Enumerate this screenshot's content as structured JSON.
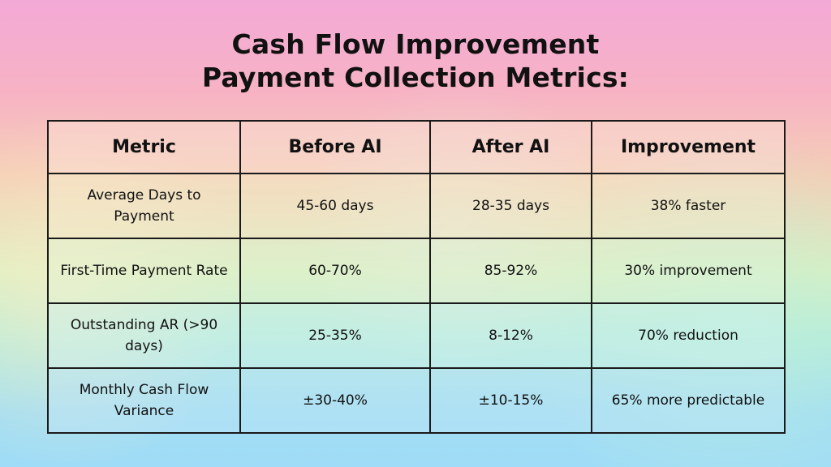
{
  "title": {
    "line1": "Cash Flow Improvement",
    "line2": "Payment Collection Metrics:"
  },
  "table": {
    "headers": [
      "Metric",
      "Before AI",
      "After AI",
      "Improvement"
    ],
    "rows": [
      [
        "Average Days to Payment",
        "45-60 days",
        "28-35 days",
        "38% faster"
      ],
      [
        "First-Time Payment Rate",
        "60-70%",
        "85-92%",
        "30% improvement"
      ],
      [
        "Outstanding AR (>90 days)",
        "25-35%",
        "8-12%",
        "70% reduction"
      ],
      [
        "Monthly Cash Flow Variance",
        "±30-40%",
        "±10-15%",
        "65% more predictable"
      ]
    ]
  }
}
